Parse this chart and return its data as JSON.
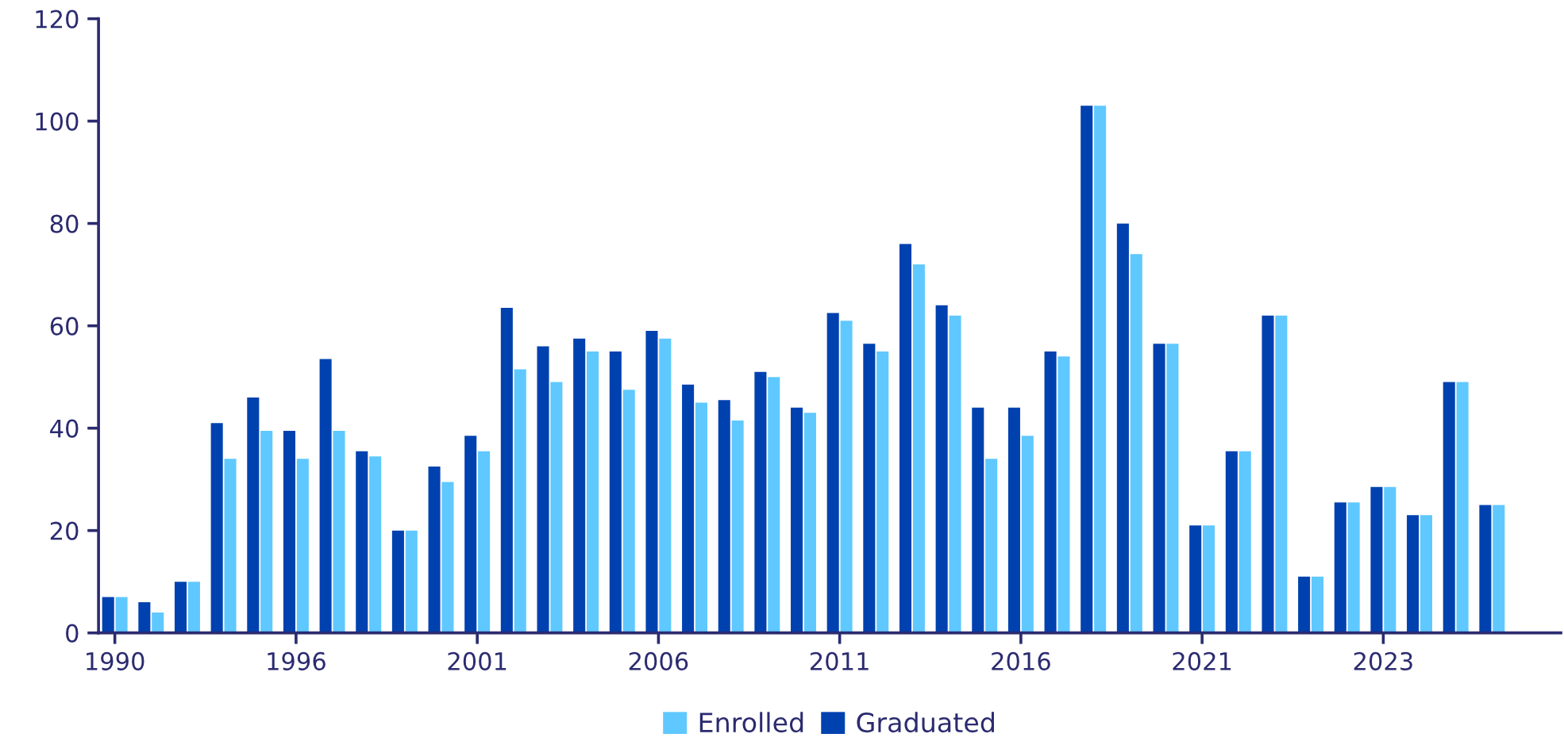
{
  "chart_data": {
    "type": "bar",
    "categories": [
      "1990",
      null,
      null,
      null,
      null,
      "1996",
      null,
      null,
      null,
      null,
      "2001",
      null,
      null,
      null,
      null,
      "2006",
      null,
      null,
      null,
      null,
      "2011",
      null,
      null,
      null,
      null,
      "2016",
      null,
      null,
      null,
      null,
      "2021",
      null,
      null,
      null,
      null,
      "2023",
      null,
      null,
      null
    ],
    "series": [
      {
        "name": "Graduated",
        "color": "#0041b0",
        "values": [
          7,
          6,
          10,
          41,
          46,
          39.5,
          53.5,
          35.5,
          20,
          32.5,
          38.5,
          63.5,
          56,
          57.5,
          55,
          59,
          48.5,
          45.5,
          51,
          44,
          62.5,
          56.5,
          76,
          64,
          44,
          44,
          55,
          103,
          80,
          56.5,
          21,
          35.5,
          62,
          11,
          25.5,
          28.5,
          23,
          49,
          25
        ]
      },
      {
        "name": "Enrolled",
        "color": "#5fc8ff",
        "values": [
          7,
          4,
          10,
          34,
          39.5,
          34,
          39.5,
          34.5,
          20,
          29.5,
          35.5,
          51.5,
          49,
          55,
          47.5,
          57.5,
          45,
          41.5,
          50,
          43,
          61,
          55,
          72,
          62,
          34,
          38.5,
          54,
          103,
          74,
          56.5,
          21,
          35.5,
          62,
          11,
          25.5,
          28.5,
          23,
          49,
          25
        ]
      }
    ],
    "ylim": [
      0,
      120
    ],
    "yticks": [
      0,
      20,
      40,
      60,
      80,
      100,
      120
    ],
    "grid": false,
    "legend": "bottom"
  }
}
